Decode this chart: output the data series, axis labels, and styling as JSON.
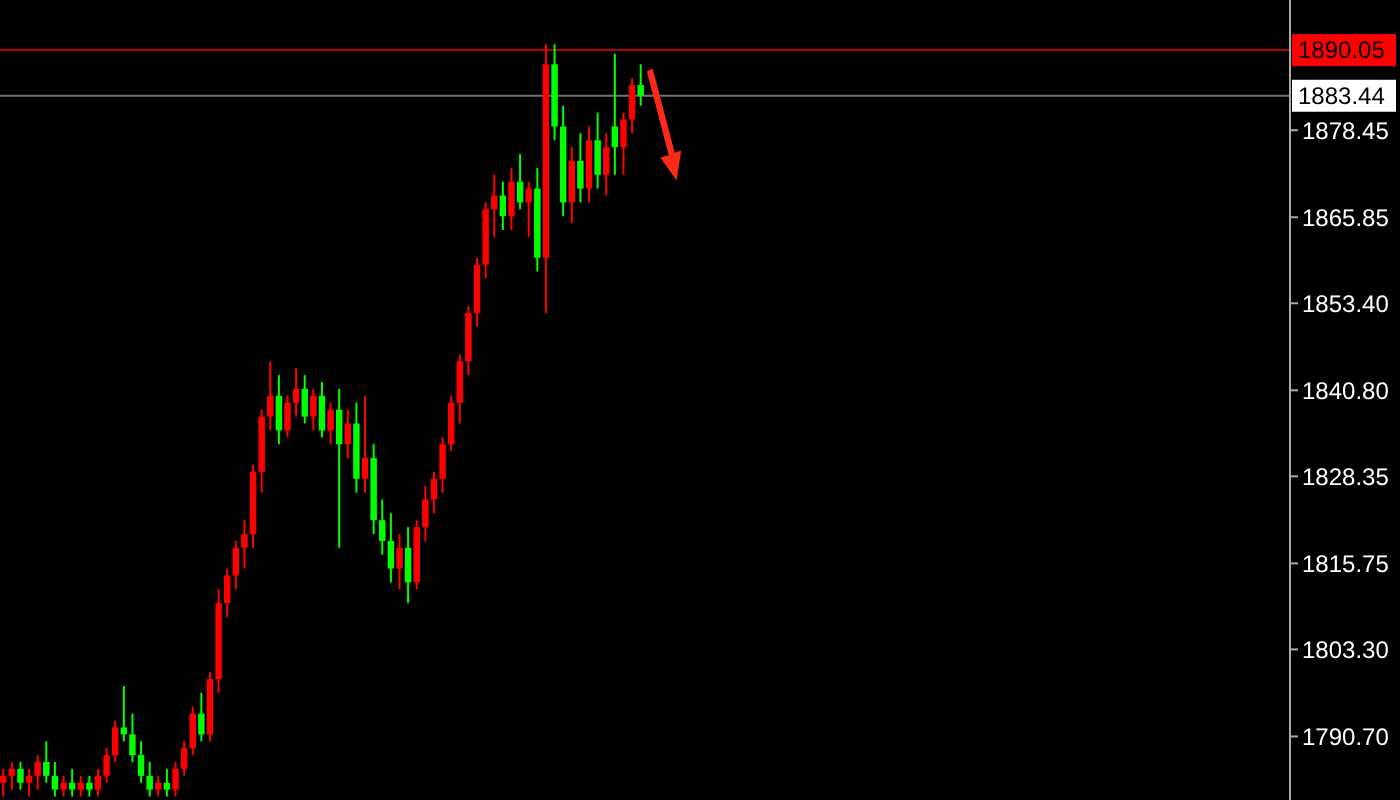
{
  "chart_data": {
    "type": "candlestick",
    "relative": false,
    "categories": [
      null,
      null,
      null,
      null,
      null,
      null,
      null,
      null,
      null,
      null,
      null,
      null,
      null,
      null,
      null,
      null,
      null,
      null,
      null,
      null,
      null,
      null,
      null,
      null,
      null,
      null,
      null,
      null,
      null,
      null,
      null,
      null,
      null,
      null,
      null,
      null,
      null,
      null,
      null,
      null,
      null,
      null,
      null,
      null,
      null,
      null,
      null,
      null,
      null,
      null,
      null,
      null,
      null,
      null,
      null,
      null,
      null,
      null,
      null,
      null,
      null,
      null,
      null,
      null,
      null,
      null,
      null,
      null,
      null,
      null,
      null,
      null,
      null,
      null,
      null,
      null,
      null,
      null,
      null,
      null,
      null,
      null,
      null,
      null,
      null,
      null,
      null,
      null,
      null,
      null,
      null,
      null,
      null,
      null,
      null,
      null,
      null,
      null,
      null,
      null,
      null,
      null,
      null,
      null,
      null,
      null,
      null,
      null,
      null,
      null,
      null,
      null,
      null,
      null,
      null,
      null,
      null,
      null,
      null,
      null,
      null,
      null,
      null,
      null,
      null,
      null,
      null,
      null,
      null,
      null,
      null,
      null,
      null,
      null,
      null,
      null,
      null,
      null,
      null,
      null,
      null,
      null,
      null,
      null,
      null,
      null,
      null,
      null,
      null,
      null
    ],
    "ohlc": [
      [
        1784,
        1786,
        1782,
        1785
      ],
      [
        1785,
        1787,
        1783,
        1786
      ],
      [
        1786,
        1787,
        1783,
        1784
      ],
      [
        1784,
        1786,
        1782,
        1785
      ],
      [
        1785,
        1788,
        1783,
        1787
      ],
      [
        1787,
        1790,
        1784,
        1785
      ],
      [
        1785,
        1787,
        1782,
        1783
      ],
      [
        1783,
        1785,
        1782,
        1784
      ],
      [
        1784,
        1786,
        1782,
        1783
      ],
      [
        1783,
        1785,
        1782,
        1784
      ],
      [
        1784,
        1785,
        1782,
        1783
      ],
      [
        1783,
        1786,
        1782,
        1785
      ],
      [
        1785,
        1789,
        1784,
        1788
      ],
      [
        1788,
        1793,
        1787,
        1792
      ],
      [
        1792,
        1798,
        1790,
        1791
      ],
      [
        1791,
        1794,
        1787,
        1788
      ],
      [
        1788,
        1790,
        1784,
        1785
      ],
      [
        1785,
        1787,
        1782,
        1783
      ],
      [
        1783,
        1785,
        1782,
        1784
      ],
      [
        1784,
        1786,
        1782,
        1783
      ],
      [
        1783,
        1787,
        1782,
        1786
      ],
      [
        1786,
        1790,
        1785,
        1789
      ],
      [
        1789,
        1795,
        1788,
        1794
      ],
      [
        1794,
        1797,
        1790,
        1791
      ],
      [
        1791,
        1800,
        1790,
        1799
      ],
      [
        1799,
        1812,
        1797,
        1810
      ],
      [
        1810,
        1815,
        1808,
        1814
      ],
      [
        1814,
        1819,
        1812,
        1818
      ],
      [
        1818,
        1822,
        1815,
        1820
      ],
      [
        1820,
        1830,
        1818,
        1829
      ],
      [
        1829,
        1838,
        1826,
        1837
      ],
      [
        1837,
        1845,
        1835,
        1840
      ],
      [
        1840,
        1843,
        1833,
        1835
      ],
      [
        1835,
        1840,
        1834,
        1839
      ],
      [
        1839,
        1844,
        1837,
        1841
      ],
      [
        1841,
        1843,
        1836,
        1837
      ],
      [
        1837,
        1841,
        1835,
        1840
      ],
      [
        1840,
        1842,
        1834,
        1835
      ],
      [
        1835,
        1839,
        1833,
        1838
      ],
      [
        1838,
        1841,
        1818,
        1833
      ],
      [
        1833,
        1838,
        1831,
        1836
      ],
      [
        1836,
        1839,
        1826,
        1828
      ],
      [
        1828,
        1840,
        1826,
        1831
      ],
      [
        1831,
        1833,
        1820,
        1822
      ],
      [
        1822,
        1825,
        1817,
        1819
      ],
      [
        1819,
        1823,
        1813,
        1815
      ],
      [
        1815,
        1820,
        1812,
        1818
      ],
      [
        1818,
        1821,
        1810,
        1813
      ],
      [
        1813,
        1822,
        1812,
        1821
      ],
      [
        1821,
        1827,
        1819,
        1825
      ],
      [
        1825,
        1829,
        1823,
        1828
      ],
      [
        1828,
        1834,
        1826,
        1833
      ],
      [
        1833,
        1840,
        1832,
        1839
      ],
      [
        1839,
        1846,
        1836,
        1845
      ],
      [
        1845,
        1853,
        1843,
        1852
      ],
      [
        1852,
        1860,
        1850,
        1859
      ],
      [
        1859,
        1868,
        1857,
        1867
      ],
      [
        1867,
        1872,
        1863,
        1869
      ],
      [
        1869,
        1871,
        1864,
        1866
      ],
      [
        1866,
        1873,
        1864,
        1871
      ],
      [
        1871,
        1875,
        1867,
        1868
      ],
      [
        1868,
        1871,
        1863,
        1870
      ],
      [
        1870,
        1873,
        1858,
        1860
      ],
      [
        1860,
        1890.9,
        1852,
        1888
      ],
      [
        1888,
        1890.9,
        1877,
        1879
      ],
      [
        1879,
        1882,
        1866,
        1868
      ],
      [
        1868,
        1876,
        1865,
        1874
      ],
      [
        1874,
        1878,
        1868,
        1870
      ],
      [
        1870,
        1879,
        1868,
        1877
      ],
      [
        1877,
        1881,
        1870,
        1872
      ],
      [
        1872,
        1878,
        1869,
        1876
      ],
      [
        1879,
        1889.5,
        1872,
        1876
      ],
      [
        1876,
        1881,
        1872,
        1880
      ],
      [
        1880,
        1886,
        1878,
        1885
      ],
      [
        1885,
        1888,
        1882,
        1883.44
      ],
      null,
      null,
      null,
      null,
      null,
      null,
      null,
      null,
      null,
      null,
      null,
      null,
      null,
      null,
      null,
      null,
      null,
      null,
      null,
      null,
      null,
      null,
      null,
      null,
      null,
      null,
      null,
      null,
      null,
      null,
      null,
      null,
      null,
      null,
      null,
      null,
      null,
      null,
      null,
      null,
      null,
      null,
      null,
      null,
      null,
      null,
      null,
      null,
      null,
      null,
      null,
      null,
      null,
      null,
      null,
      null,
      null,
      null,
      null,
      null,
      null,
      null,
      null,
      null,
      null,
      null,
      null,
      null,
      null,
      null,
      null,
      null,
      null,
      null,
      null
    ],
    "colors": [
      "#ff0000",
      "#ff0000",
      "#00ff00",
      "#ff0000",
      "#ff0000",
      "#00ff00",
      "#00ff00",
      "#ff0000",
      "#00ff00",
      "#ff0000",
      "#00ff00",
      "#ff0000",
      "#ff0000",
      "#ff0000",
      "#00ff00",
      "#00ff00",
      "#00ff00",
      "#00ff00",
      "#ff0000",
      "#00ff00",
      "#ff0000",
      "#ff0000",
      "#ff0000",
      "#00ff00",
      "#ff0000",
      "#ff0000",
      "#ff0000",
      "#ff0000",
      "#ff0000",
      "#ff0000",
      "#ff0000",
      "#ff0000",
      "#00ff00",
      "#ff0000",
      "#ff0000",
      "#00ff00",
      "#ff0000",
      "#00ff00",
      "#ff0000",
      "#00ff00",
      "#ff0000",
      "#00ff00",
      "#ff0000",
      "#00ff00",
      "#00ff00",
      "#00ff00",
      "#ff0000",
      "#00ff00",
      "#ff0000",
      "#ff0000",
      "#ff0000",
      "#ff0000",
      "#ff0000",
      "#ff0000",
      "#ff0000",
      "#ff0000",
      "#ff0000",
      "#ff0000",
      "#00ff00",
      "#ff0000",
      "#00ff00",
      "#ff0000",
      "#00ff00",
      "#ff0000",
      "#00ff00",
      "#00ff00",
      "#ff0000",
      "#00ff00",
      "#ff0000",
      "#00ff00",
      "#ff0000",
      "#00ff00",
      "#ff0000",
      "#ff0000",
      "#00ff00",
      null,
      null,
      null,
      null,
      null,
      null,
      null,
      null,
      null,
      null,
      null,
      null,
      null,
      null,
      null,
      null,
      null,
      null,
      null,
      null,
      null,
      null,
      null,
      null,
      null,
      null,
      null,
      null,
      null,
      null,
      null,
      null,
      null,
      null,
      null,
      null,
      null,
      null,
      null,
      null,
      null,
      null,
      null,
      null,
      null,
      null,
      null,
      null,
      null,
      null,
      null,
      null,
      null,
      null,
      null,
      null,
      null,
      null,
      null,
      null,
      null,
      null,
      null,
      null,
      null,
      null,
      null,
      null,
      null,
      null,
      null,
      null,
      null,
      null,
      null
    ],
    "ylim": [
      1781.5,
      1897.3
    ],
    "yticks": [
      1878.45,
      1865.85,
      {
        "value": 1853.4,
        "label": "1853.40"
      },
      {
        "value": 1840.8,
        "label": "1840.80"
      },
      1828.35,
      1815.75,
      {
        "value": 1803.3,
        "label": "1803.30"
      },
      {
        "value": 1790.7,
        "label": "1790.70"
      }
    ],
    "ref_lines": [
      {
        "axis": "y",
        "value": 1890.05,
        "label": "1890.05",
        "color": "#ff0000"
      },
      {
        "axis": "y",
        "value": 1883.44,
        "label": "1883.44",
        "color": "#a0a0a0"
      }
    ],
    "grid": false
  }
}
